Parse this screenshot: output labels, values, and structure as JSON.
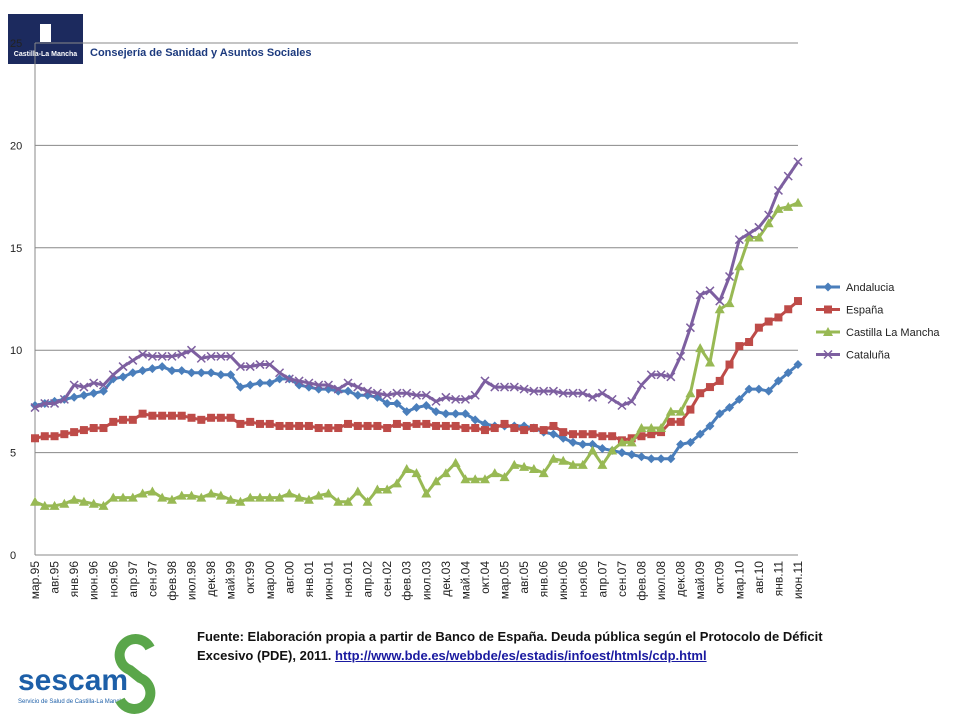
{
  "header": {
    "logo_text": "Castilla-La Mancha",
    "department": "Consejería de Sanidad y Asuntos Sociales"
  },
  "footer": {
    "source": "Fuente: Elaboración propia a partir de Banco de España. Deuda pública según el Protocolo de Déficit Excesivo (PDE), 2011.",
    "link": "http://www.bde.es/webbde/es/estadis/infoest/htmls/cdp.html",
    "logo_name": "sescam",
    "logo_subtitle": "Servicio de Salud de Castilla-La Mancha"
  },
  "chart_data": {
    "type": "line",
    "categories": [
      "мар.95",
      null,
      "авг.95",
      null,
      "янв.96",
      null,
      "июн.96",
      null,
      "ноя.96",
      null,
      "апр.97",
      null,
      "сен.97",
      null,
      "фев.98",
      null,
      "июл.98",
      null,
      "дек.98",
      null,
      "май.99",
      null,
      "окт.99",
      null,
      "мар.00",
      null,
      "авг.00",
      null,
      "янв.01",
      null,
      "июн.01",
      null,
      "ноя.01",
      null,
      "апр.02",
      null,
      "сен.02",
      null,
      "фев.03",
      null,
      "июл.03",
      null,
      "дек.03",
      null,
      "май.04",
      null,
      "окт.04",
      null,
      "мар.05",
      null,
      "авг.05",
      null,
      "янв.06",
      null,
      "июн.06",
      null,
      "ноя.06",
      null,
      "апр.07",
      null,
      "сен.07",
      null,
      "фев.08",
      null,
      "июл.08",
      null,
      "дек.08",
      null,
      "май.09",
      null,
      "окт.09",
      null,
      "мар.10",
      null,
      "авг.10",
      null,
      "янв.11",
      null,
      "июн.11"
    ],
    "series": [
      {
        "name": "Andalucia",
        "color": "#4a7ebb",
        "marker": "diamond",
        "values": [
          7.3,
          7.4,
          7.5,
          7.6,
          7.7,
          7.8,
          7.9,
          8.0,
          8.6,
          8.7,
          8.9,
          9.0,
          9.1,
          9.2,
          9.0,
          9.0,
          8.9,
          8.9,
          8.9,
          8.8,
          8.8,
          8.2,
          8.3,
          8.4,
          8.4,
          8.6,
          8.6,
          8.3,
          8.2,
          8.1,
          8.1,
          8.0,
          8.0,
          7.8,
          7.8,
          7.7,
          7.4,
          7.4,
          7.0,
          7.2,
          7.3,
          7.0,
          6.9,
          6.9,
          6.9,
          6.6,
          6.4,
          6.3,
          6.3,
          6.3,
          6.3,
          6.2,
          6.0,
          5.9,
          5.7,
          5.5,
          5.4,
          5.4,
          5.2,
          5.1,
          5.0,
          4.9,
          4.8,
          4.7,
          4.7,
          4.7,
          5.4,
          5.5,
          5.9,
          6.3,
          6.9,
          7.2,
          7.6,
          8.1,
          8.1,
          8.0,
          8.5,
          8.9,
          9.3
        ]
      },
      {
        "name": "España",
        "color": "#be4b48",
        "marker": "square",
        "values": [
          5.7,
          5.8,
          5.8,
          5.9,
          6.0,
          6.1,
          6.2,
          6.2,
          6.5,
          6.6,
          6.6,
          6.9,
          6.8,
          6.8,
          6.8,
          6.8,
          6.7,
          6.6,
          6.7,
          6.7,
          6.7,
          6.4,
          6.5,
          6.4,
          6.4,
          6.3,
          6.3,
          6.3,
          6.3,
          6.2,
          6.2,
          6.2,
          6.4,
          6.3,
          6.3,
          6.3,
          6.2,
          6.4,
          6.3,
          6.4,
          6.4,
          6.3,
          6.3,
          6.3,
          6.2,
          6.2,
          6.1,
          6.2,
          6.4,
          6.2,
          6.1,
          6.2,
          6.1,
          6.3,
          6.0,
          5.9,
          5.9,
          5.9,
          5.8,
          5.8,
          5.6,
          5.7,
          5.8,
          5.9,
          6.0,
          6.5,
          6.5,
          7.1,
          7.9,
          8.2,
          8.5,
          9.3,
          10.2,
          10.4,
          11.1,
          11.4,
          11.6,
          12.0,
          12.4
        ]
      },
      {
        "name": "Castilla La Mancha",
        "color": "#98b954",
        "marker": "triangle",
        "values": [
          2.6,
          2.4,
          2.4,
          2.5,
          2.7,
          2.6,
          2.5,
          2.4,
          2.8,
          2.8,
          2.8,
          3.0,
          3.1,
          2.8,
          2.7,
          2.9,
          2.9,
          2.8,
          3.0,
          2.9,
          2.7,
          2.6,
          2.8,
          2.8,
          2.8,
          2.8,
          3.0,
          2.8,
          2.7,
          2.9,
          3.0,
          2.6,
          2.6,
          3.1,
          2.6,
          3.2,
          3.2,
          3.5,
          4.2,
          4.0,
          3.0,
          3.6,
          4.0,
          4.5,
          3.7,
          3.7,
          3.7,
          4.0,
          3.8,
          4.4,
          4.3,
          4.2,
          4.0,
          4.7,
          4.6,
          4.4,
          4.4,
          5.1,
          4.4,
          5.1,
          5.5,
          5.5,
          6.2,
          6.2,
          6.2,
          7.0,
          7.0,
          7.9,
          10.1,
          9.4,
          12.0,
          12.3,
          14.1,
          15.5,
          15.5,
          16.2,
          16.9,
          17.0,
          17.2
        ]
      },
      {
        "name": "Cataluña",
        "color": "#7d5fa0",
        "marker": "x",
        "values": [
          7.2,
          7.4,
          7.4,
          7.6,
          8.3,
          8.2,
          8.4,
          8.3,
          8.8,
          9.2,
          9.5,
          9.8,
          9.7,
          9.7,
          9.7,
          9.8,
          10.0,
          9.6,
          9.7,
          9.7,
          9.7,
          9.2,
          9.2,
          9.3,
          9.3,
          8.9,
          8.6,
          8.5,
          8.4,
          8.3,
          8.3,
          8.1,
          8.4,
          8.2,
          8.0,
          7.9,
          7.8,
          7.9,
          7.9,
          7.8,
          7.8,
          7.5,
          7.7,
          7.6,
          7.6,
          7.8,
          8.5,
          8.2,
          8.2,
          8.2,
          8.1,
          8.0,
          8.0,
          8.0,
          7.9,
          7.9,
          7.9,
          7.7,
          7.9,
          7.6,
          7.3,
          7.5,
          8.3,
          8.8,
          8.8,
          8.7,
          9.7,
          11.1,
          12.7,
          12.9,
          12.4,
          13.6,
          15.4,
          15.7,
          16.0,
          16.6,
          17.8,
          18.5,
          19.2
        ]
      }
    ],
    "ylim": [
      0,
      25
    ],
    "yticks": [
      0,
      5,
      10,
      15,
      20,
      25
    ],
    "grid": true,
    "legend": "right"
  }
}
